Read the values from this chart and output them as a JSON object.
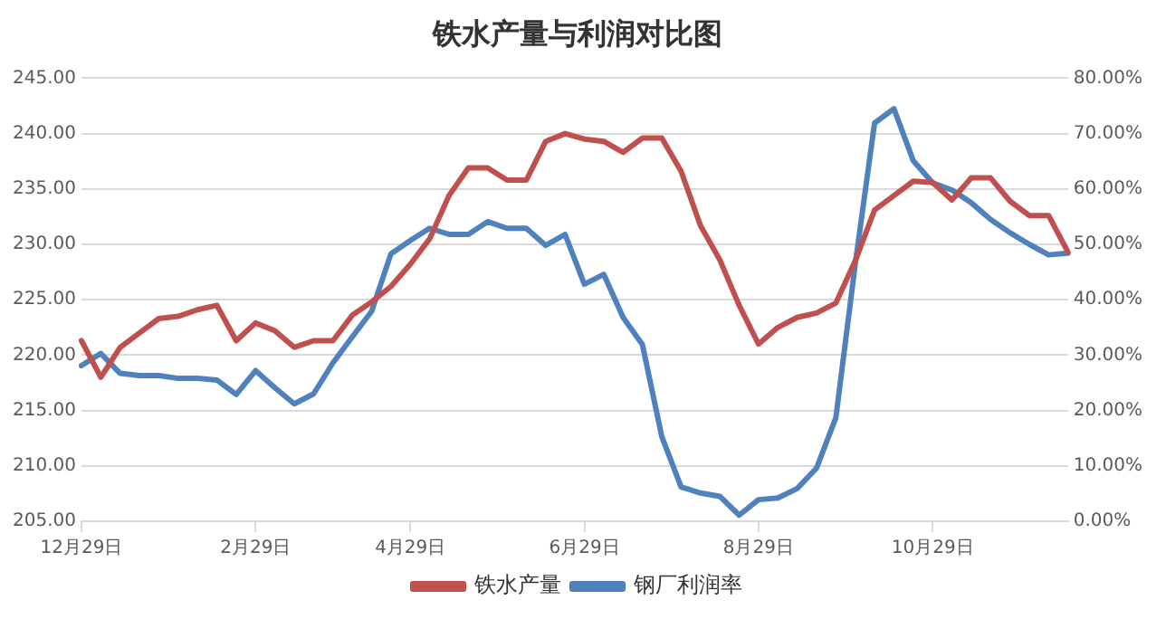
{
  "chart_data": {
    "type": "line",
    "title": "铁水产量与利润对比图",
    "categories": [
      "12月29日",
      null,
      null,
      null,
      null,
      null,
      null,
      null,
      null,
      "2月29日",
      null,
      null,
      null,
      null,
      null,
      null,
      null,
      "4月29日",
      null,
      null,
      null,
      null,
      null,
      null,
      null,
      null,
      "6月29日",
      null,
      null,
      null,
      null,
      null,
      null,
      null,
      null,
      "8月29日",
      null,
      null,
      null,
      null,
      null,
      null,
      null,
      null,
      "10月29日",
      null,
      null,
      null,
      null,
      null,
      null,
      null
    ],
    "series": [
      {
        "name": "铁水产量",
        "color": "#c0504d",
        "values": [
          221.3,
          218.0,
          220.7,
          222.0,
          223.3,
          223.5,
          224.1,
          224.5,
          221.3,
          222.9,
          222.2,
          220.7,
          221.3,
          221.3,
          223.6,
          224.8,
          226.2,
          228.2,
          230.5,
          234.4,
          236.9,
          236.9,
          235.8,
          235.8,
          239.3,
          240.0,
          239.5,
          239.3,
          238.3,
          239.6,
          239.6,
          236.6,
          231.7,
          228.6,
          224.5,
          221.0,
          222.5,
          223.4,
          223.8,
          224.7,
          228.5,
          233.1,
          234.4,
          235.7,
          235.6,
          234.0,
          236.0,
          236.0,
          233.9,
          232.6,
          232.6,
          229.3
        ]
      },
      {
        "name": "钢厂利润率",
        "color": "#4f81bd",
        "axis": "y2",
        "values": [
          28.1,
          30.3,
          26.7,
          26.3,
          26.3,
          25.8,
          25.8,
          25.5,
          22.9,
          27.2,
          24.1,
          21.2,
          23.0,
          28.6,
          33.3,
          37.9,
          48.3,
          50.7,
          52.9,
          51.8,
          51.8,
          54.1,
          52.9,
          52.9,
          49.8,
          51.8,
          42.8,
          44.6,
          36.8,
          31.9,
          15.3,
          6.2,
          5.1,
          4.5,
          1.1,
          3.9,
          4.2,
          5.9,
          9.6,
          18.7,
          46.4,
          71.9,
          74.5,
          65.1,
          61.1,
          59.8,
          57.5,
          54.5,
          52.1,
          50.0,
          48.1,
          48.4
        ]
      }
    ],
    "ylim": [
      205,
      245
    ],
    "yticks": [
      {
        "value": 205,
        "label": "205.00"
      },
      {
        "value": 210,
        "label": "210.00"
      },
      {
        "value": 215,
        "label": "215.00"
      },
      {
        "value": 220,
        "label": "220.00"
      },
      {
        "value": 225,
        "label": "225.00"
      },
      {
        "value": 230,
        "label": "230.00"
      },
      {
        "value": 235,
        "label": "235.00"
      },
      {
        "value": 240,
        "label": "240.00"
      },
      {
        "value": 245,
        "label": "245.00"
      }
    ],
    "y2lim": [
      0,
      80
    ],
    "y2ticks": [
      {
        "value": 0,
        "label": "0.00%"
      },
      {
        "value": 10,
        "label": "10.00%"
      },
      {
        "value": 20,
        "label": "20.00%"
      },
      {
        "value": 30,
        "label": "30.00%"
      },
      {
        "value": 40,
        "label": "40.00%"
      },
      {
        "value": 50,
        "label": "50.00%"
      },
      {
        "value": 60,
        "label": "60.00%"
      },
      {
        "value": 70,
        "label": "70.00%"
      },
      {
        "value": 80,
        "label": "80.00%"
      }
    ],
    "grid": "y",
    "legend": "bottom",
    "marker": "none",
    "line_style": "solid"
  }
}
